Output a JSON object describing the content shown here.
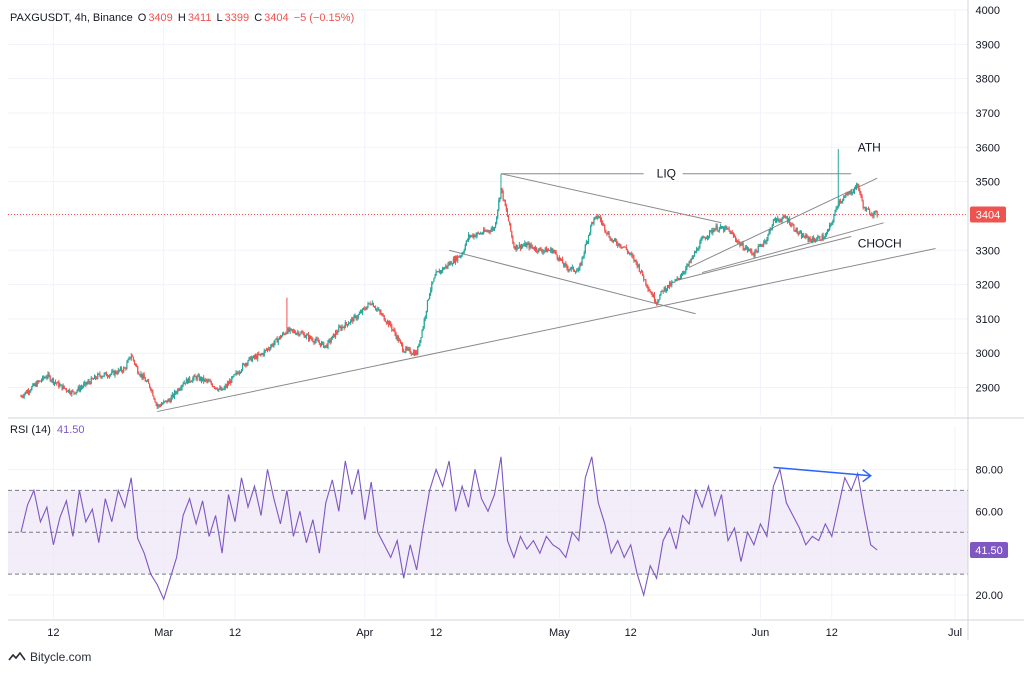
{
  "header": {
    "symbol": "PAXGUSDT, 4h, Binance",
    "open_label": "O",
    "open": "3409",
    "high_label": "H",
    "high": "3411",
    "low_label": "L",
    "low": "3399",
    "close_label": "C",
    "close": "3404",
    "change": "−5 (−0.15%)"
  },
  "rsi_panel": {
    "label": "RSI (14)",
    "value": "41.50"
  },
  "watermark": "Bitycle.com",
  "colors": {
    "up": "#26a69a",
    "down": "#ef5350",
    "rsi": "#7e57c2",
    "band": "#ede7f6",
    "trendline": "#8a8a8a",
    "divergence": "#2962ff",
    "price_line": "#ef5350"
  },
  "chart_data": [
    {
      "type": "candlestick",
      "title": "",
      "xlabel": "",
      "ylabel": "",
      "ylim": [
        2820,
        4000
      ],
      "y_ticks": [
        2900,
        3000,
        3100,
        3200,
        3300,
        3400,
        3500,
        3600,
        3700,
        3800,
        3900,
        4000
      ],
      "x_ticks": [
        "12",
        "Mar",
        "12",
        "Apr",
        "12",
        "May",
        "12",
        "Jun",
        "12",
        "Jul"
      ],
      "last_price_label": "3404",
      "grid": true,
      "price_anchors": [
        [
          "2025-02-07",
          2875
        ],
        [
          "2025-02-09",
          2905
        ],
        [
          "2025-02-11",
          2935
        ],
        [
          "2025-02-13",
          2905
        ],
        [
          "2025-02-15",
          2885
        ],
        [
          "2025-02-17",
          2910
        ],
        [
          "2025-02-19",
          2935
        ],
        [
          "2025-02-21",
          2940
        ],
        [
          "2025-02-23",
          2955
        ],
        [
          "2025-02-24",
          2995
        ],
        [
          "2025-02-25",
          2950
        ],
        [
          "2025-02-27",
          2900
        ],
        [
          "2025-02-28",
          2845
        ],
        [
          "2025-03-02",
          2865
        ],
        [
          "2025-03-04",
          2915
        ],
        [
          "2025-03-06",
          2930
        ],
        [
          "2025-03-08",
          2915
        ],
        [
          "2025-03-10",
          2890
        ],
        [
          "2025-03-12",
          2935
        ],
        [
          "2025-03-14",
          2980
        ],
        [
          "2025-03-16",
          2995
        ],
        [
          "2025-03-18",
          3030
        ],
        [
          "2025-03-20",
          3065
        ],
        [
          "2025-03-22",
          3060
        ],
        [
          "2025-03-24",
          3040
        ],
        [
          "2025-03-26",
          3020
        ],
        [
          "2025-03-28",
          3070
        ],
        [
          "2025-03-31",
          3110
        ],
        [
          "2025-04-02",
          3150
        ],
        [
          "2025-04-03",
          3125
        ],
        [
          "2025-04-05",
          3080
        ],
        [
          "2025-04-07",
          3010
        ],
        [
          "2025-04-09",
          3000
        ],
        [
          "2025-04-10",
          3080
        ],
        [
          "2025-04-11",
          3180
        ],
        [
          "2025-04-12",
          3230
        ],
        [
          "2025-04-14",
          3260
        ],
        [
          "2025-04-16",
          3290
        ],
        [
          "2025-04-17",
          3340
        ],
        [
          "2025-04-19",
          3350
        ],
        [
          "2025-04-21",
          3365
        ],
        [
          "2025-04-22",
          3480
        ],
        [
          "2025-04-23",
          3400
        ],
        [
          "2025-04-24",
          3310
        ],
        [
          "2025-04-26",
          3315
        ],
        [
          "2025-04-28",
          3300
        ],
        [
          "2025-04-30",
          3300
        ],
        [
          "2025-05-02",
          3250
        ],
        [
          "2025-05-04",
          3240
        ],
        [
          "2025-05-06",
          3380
        ],
        [
          "2025-05-07",
          3400
        ],
        [
          "2025-05-09",
          3330
        ],
        [
          "2025-05-11",
          3310
        ],
        [
          "2025-05-13",
          3260
        ],
        [
          "2025-05-15",
          3180
        ],
        [
          "2025-05-16",
          3150
        ],
        [
          "2025-05-17",
          3185
        ],
        [
          "2025-05-19",
          3210
        ],
        [
          "2025-05-21",
          3260
        ],
        [
          "2025-05-23",
          3330
        ],
        [
          "2025-05-25",
          3365
        ],
        [
          "2025-05-27",
          3360
        ],
        [
          "2025-05-29",
          3315
        ],
        [
          "2025-05-31",
          3290
        ],
        [
          "2025-06-02",
          3335
        ],
        [
          "2025-06-03",
          3385
        ],
        [
          "2025-06-05",
          3395
        ],
        [
          "2025-06-07",
          3345
        ],
        [
          "2025-06-09",
          3330
        ],
        [
          "2025-06-11",
          3340
        ],
        [
          "2025-06-12",
          3380
        ],
        [
          "2025-06-13",
          3440
        ],
        [
          "2025-06-14",
          3455
        ],
        [
          "2025-06-15",
          3470
        ],
        [
          "2025-06-16",
          3490
        ],
        [
          "2025-06-17",
          3420
        ],
        [
          "2025-06-18",
          3410
        ],
        [
          "2025-06-19",
          3404
        ]
      ],
      "spikes": [
        [
          "2025-03-20",
          3162
        ],
        [
          "2025-06-13",
          3595
        ],
        [
          "2025-04-22",
          3522
        ]
      ],
      "annotations": [
        {
          "text": "ATH",
          "date": "2025-06-16",
          "price": 3600
        },
        {
          "text": "LIQ",
          "date": "2025-05-16",
          "price": 3523
        },
        {
          "text": "CHOCH",
          "date": "2025-06-16",
          "price": 3320
        }
      ],
      "trendlines": [
        {
          "from": [
            "2025-02-28",
            2830
          ],
          "to": [
            "2025-06-28",
            3305
          ]
        },
        {
          "from": [
            "2025-04-22",
            3523
          ],
          "to": [
            "2025-05-26",
            3380
          ]
        },
        {
          "from": [
            "2025-04-14",
            3300
          ],
          "to": [
            "2025-05-22",
            3115
          ]
        },
        {
          "from": [
            "2025-05-21",
            3250
          ],
          "to": [
            "2025-06-19",
            3510
          ]
        },
        {
          "from": [
            "2025-05-23",
            3235
          ],
          "to": [
            "2025-06-20",
            3380
          ]
        },
        {
          "from": [
            "2025-05-19",
            3212
          ],
          "to": [
            "2025-06-15",
            3340
          ]
        },
        {
          "from": [
            "2025-04-22",
            3523
          ],
          "to": [
            "2025-05-14",
            3523
          ]
        },
        {
          "from": [
            "2025-05-20",
            3523
          ],
          "to": [
            "2025-06-15",
            3523
          ]
        }
      ]
    },
    {
      "type": "line",
      "title": "",
      "ylim": [
        10,
        95
      ],
      "y_ticks": [
        20,
        40,
        60,
        80
      ],
      "band": [
        30,
        70
      ],
      "midline": 50,
      "value_label": "41.50",
      "series": [
        {
          "values": [
            [
              "2025-02-07",
              50
            ],
            [
              "2025-02-08",
              63
            ],
            [
              "2025-02-09",
              70
            ],
            [
              "2025-02-10",
              55
            ],
            [
              "2025-02-11",
              62
            ],
            [
              "2025-02-12",
              44
            ],
            [
              "2025-02-13",
              57
            ],
            [
              "2025-02-14",
              65
            ],
            [
              "2025-02-15",
              48
            ],
            [
              "2025-02-16",
              70
            ],
            [
              "2025-02-17",
              55
            ],
            [
              "2025-02-18",
              61
            ],
            [
              "2025-02-19",
              45
            ],
            [
              "2025-02-20",
              66
            ],
            [
              "2025-02-21",
              55
            ],
            [
              "2025-02-22",
              70
            ],
            [
              "2025-02-23",
              62
            ],
            [
              "2025-02-24",
              76
            ],
            [
              "2025-02-25",
              47
            ],
            [
              "2025-02-26",
              40
            ],
            [
              "2025-02-27",
              30
            ],
            [
              "2025-02-28",
              25
            ],
            [
              "2025-03-01",
              18
            ],
            [
              "2025-03-02",
              28
            ],
            [
              "2025-03-03",
              38
            ],
            [
              "2025-03-04",
              58
            ],
            [
              "2025-03-05",
              66
            ],
            [
              "2025-03-06",
              54
            ],
            [
              "2025-03-07",
              65
            ],
            [
              "2025-03-08",
              48
            ],
            [
              "2025-03-09",
              58
            ],
            [
              "2025-03-10",
              40
            ],
            [
              "2025-03-11",
              68
            ],
            [
              "2025-03-12",
              55
            ],
            [
              "2025-03-13",
              76
            ],
            [
              "2025-03-14",
              62
            ],
            [
              "2025-03-15",
              72
            ],
            [
              "2025-03-16",
              58
            ],
            [
              "2025-03-17",
              80
            ],
            [
              "2025-03-18",
              66
            ],
            [
              "2025-03-19",
              54
            ],
            [
              "2025-03-20",
              70
            ],
            [
              "2025-03-21",
              48
            ],
            [
              "2025-03-22",
              60
            ],
            [
              "2025-03-23",
              45
            ],
            [
              "2025-03-24",
              56
            ],
            [
              "2025-03-25",
              40
            ],
            [
              "2025-03-26",
              64
            ],
            [
              "2025-03-27",
              75
            ],
            [
              "2025-03-28",
              60
            ],
            [
              "2025-03-29",
              84
            ],
            [
              "2025-03-30",
              68
            ],
            [
              "2025-03-31",
              80
            ],
            [
              "2025-04-01",
              56
            ],
            [
              "2025-04-02",
              74
            ],
            [
              "2025-04-03",
              50
            ],
            [
              "2025-04-04",
              44
            ],
            [
              "2025-04-05",
              38
            ],
            [
              "2025-04-06",
              46
            ],
            [
              "2025-04-07",
              28
            ],
            [
              "2025-04-08",
              44
            ],
            [
              "2025-04-09",
              32
            ],
            [
              "2025-04-10",
              52
            ],
            [
              "2025-04-11",
              70
            ],
            [
              "2025-04-12",
              80
            ],
            [
              "2025-04-13",
              72
            ],
            [
              "2025-04-14",
              84
            ],
            [
              "2025-04-15",
              60
            ],
            [
              "2025-04-16",
              72
            ],
            [
              "2025-04-17",
              62
            ],
            [
              "2025-04-18",
              80
            ],
            [
              "2025-04-19",
              66
            ],
            [
              "2025-04-20",
              60
            ],
            [
              "2025-04-21",
              68
            ],
            [
              "2025-04-22",
              86
            ],
            [
              "2025-04-23",
              46
            ],
            [
              "2025-04-24",
              38
            ],
            [
              "2025-04-25",
              48
            ],
            [
              "2025-04-26",
              42
            ],
            [
              "2025-04-27",
              46
            ],
            [
              "2025-04-28",
              40
            ],
            [
              "2025-04-29",
              48
            ],
            [
              "2025-04-30",
              44
            ],
            [
              "2025-05-01",
              42
            ],
            [
              "2025-05-02",
              38
            ],
            [
              "2025-05-03",
              50
            ],
            [
              "2025-05-04",
              46
            ],
            [
              "2025-05-05",
              76
            ],
            [
              "2025-05-06",
              86
            ],
            [
              "2025-05-07",
              64
            ],
            [
              "2025-05-08",
              54
            ],
            [
              "2025-05-09",
              40
            ],
            [
              "2025-05-10",
              46
            ],
            [
              "2025-05-11",
              38
            ],
            [
              "2025-05-12",
              44
            ],
            [
              "2025-05-13",
              30
            ],
            [
              "2025-05-14",
              20
            ],
            [
              "2025-05-15",
              34
            ],
            [
              "2025-05-16",
              28
            ],
            [
              "2025-05-17",
              46
            ],
            [
              "2025-05-18",
              52
            ],
            [
              "2025-05-19",
              42
            ],
            [
              "2025-05-20",
              58
            ],
            [
              "2025-05-21",
              54
            ],
            [
              "2025-05-22",
              70
            ],
            [
              "2025-05-23",
              62
            ],
            [
              "2025-05-24",
              72
            ],
            [
              "2025-05-25",
              58
            ],
            [
              "2025-05-26",
              68
            ],
            [
              "2025-05-27",
              46
            ],
            [
              "2025-05-28",
              52
            ],
            [
              "2025-05-29",
              36
            ],
            [
              "2025-05-30",
              50
            ],
            [
              "2025-05-31",
              44
            ],
            [
              "2025-06-01",
              54
            ],
            [
              "2025-06-02",
              48
            ],
            [
              "2025-06-03",
              72
            ],
            [
              "2025-06-04",
              80
            ],
            [
              "2025-06-05",
              64
            ],
            [
              "2025-06-06",
              58
            ],
            [
              "2025-06-07",
              52
            ],
            [
              "2025-06-08",
              44
            ],
            [
              "2025-06-09",
              48
            ],
            [
              "2025-06-10",
              46
            ],
            [
              "2025-06-11",
              54
            ],
            [
              "2025-06-12",
              48
            ],
            [
              "2025-06-13",
              62
            ],
            [
              "2025-06-14",
              76
            ],
            [
              "2025-06-15",
              70
            ],
            [
              "2025-06-16",
              78
            ],
            [
              "2025-06-17",
              60
            ],
            [
              "2025-06-18",
              44
            ],
            [
              "2025-06-19",
              41.5
            ]
          ]
        }
      ],
      "divergence_line": {
        "from": [
          "2025-06-03",
          81
        ],
        "to": [
          "2025-06-18",
          77
        ]
      }
    }
  ]
}
